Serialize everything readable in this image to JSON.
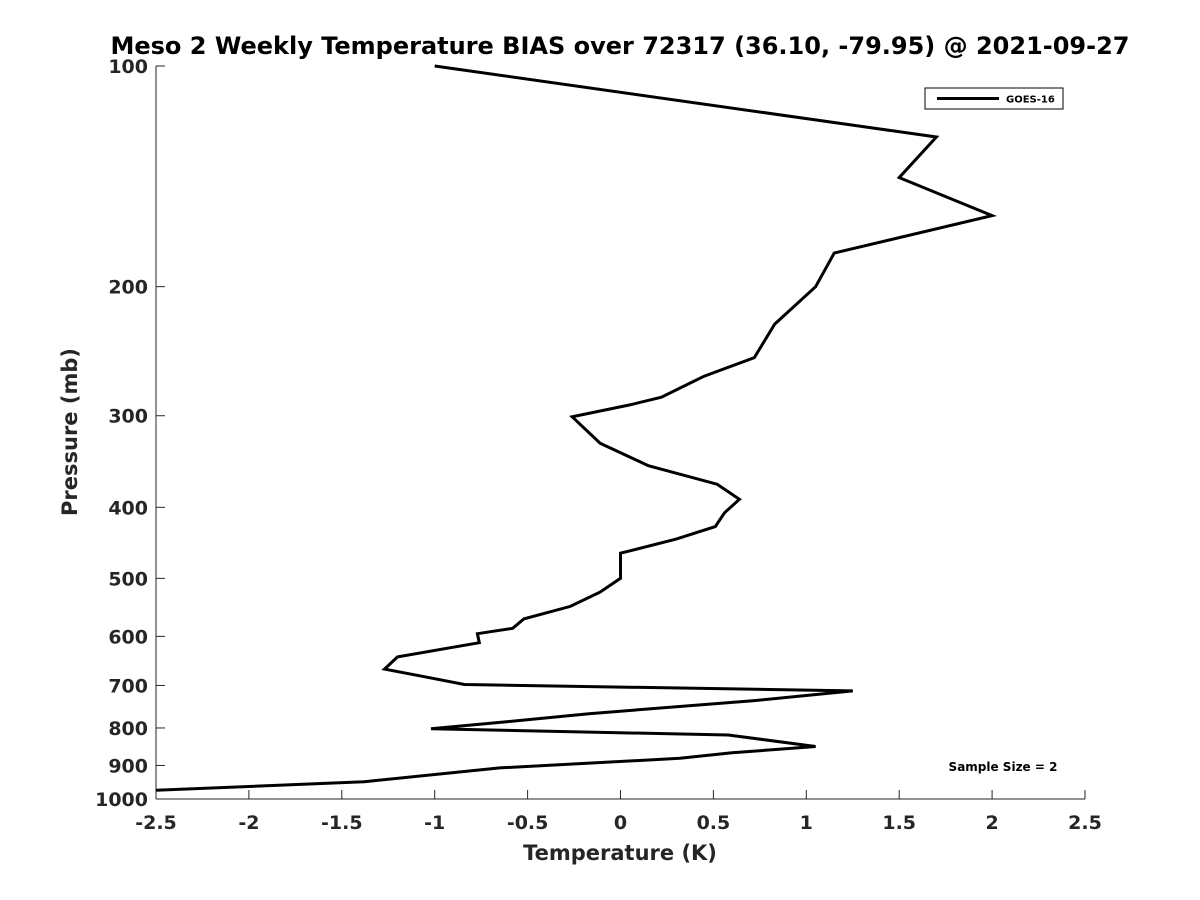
{
  "chart_data": {
    "type": "line",
    "title": "Meso 2 Weekly Temperature BIAS over 72317 (36.10, -79.95) @ 2021-09-27",
    "xlabel": "Temperature (K)",
    "ylabel": "Pressure (mb)",
    "xlim": [
      -2.5,
      2.5
    ],
    "ylim": [
      100,
      1000
    ],
    "y_scale": "log",
    "y_reversed": true,
    "x_ticks": [
      "-2.5",
      "-2",
      "-1.5",
      "-1",
      "-0.5",
      "0",
      "0.5",
      "1",
      "1.5",
      "2",
      "2.5"
    ],
    "y_ticks": [
      "100",
      "200",
      "300",
      "400",
      "500",
      "600",
      "700",
      "800",
      "900",
      "1000"
    ],
    "grid": false,
    "legend_position": "top-right",
    "series": [
      {
        "name": "GOES-16",
        "color": "#000000",
        "points": [
          [
            -1.0,
            100
          ],
          [
            1.7,
            125
          ],
          [
            1.5,
            142
          ],
          [
            2.0,
            160
          ],
          [
            1.15,
            180
          ],
          [
            1.05,
            200
          ],
          [
            0.83,
            225
          ],
          [
            0.72,
            250
          ],
          [
            0.45,
            265
          ],
          [
            0.22,
            283
          ],
          [
            0.05,
            290
          ],
          [
            -0.26,
            301
          ],
          [
            -0.11,
            327
          ],
          [
            0.15,
            351
          ],
          [
            0.52,
            372
          ],
          [
            0.64,
            390
          ],
          [
            0.56,
            407
          ],
          [
            0.51,
            425
          ],
          [
            0.3,
            442
          ],
          [
            0.0,
            462
          ],
          [
            0.0,
            500
          ],
          [
            -0.11,
            522
          ],
          [
            -0.27,
            546
          ],
          [
            -0.52,
            568
          ],
          [
            -0.58,
            585
          ],
          [
            -0.77,
            595
          ],
          [
            -0.76,
            612
          ],
          [
            -1.2,
            640
          ],
          [
            -1.27,
            665
          ],
          [
            -1.07,
            680
          ],
          [
            -0.84,
            698
          ],
          [
            1.25,
            712
          ],
          [
            0.72,
            734
          ],
          [
            -0.17,
            765
          ],
          [
            -0.62,
            785
          ],
          [
            -1.02,
            802
          ],
          [
            0.58,
            818
          ],
          [
            1.05,
            848
          ],
          [
            0.6,
            865
          ],
          [
            0.32,
            880
          ],
          [
            -0.65,
            907
          ],
          [
            -1.38,
            947
          ],
          [
            -2.5,
            973
          ]
        ]
      }
    ],
    "annotations": [
      "Sample Size = 2"
    ]
  }
}
